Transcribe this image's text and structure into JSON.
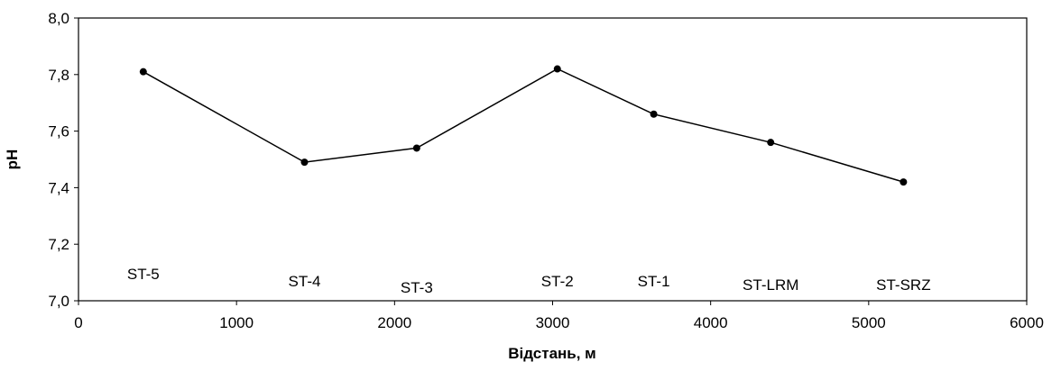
{
  "chart_data": {
    "type": "line",
    "title": "",
    "xlabel": "Відстань, м",
    "ylabel": "pH",
    "xlim": [
      0,
      6000
    ],
    "ylim": [
      7.0,
      8.0
    ],
    "x_ticks": [
      0,
      1000,
      2000,
      3000,
      4000,
      5000,
      6000
    ],
    "x_tick_labels": [
      "0",
      "1000",
      "2000",
      "3000",
      "4000",
      "5000",
      "6000"
    ],
    "y_ticks": [
      7.0,
      7.2,
      7.4,
      7.6,
      7.8,
      8.0
    ],
    "y_tick_labels": [
      "7,0",
      "7,2",
      "7,4",
      "7,6",
      "7,8",
      "8,0"
    ],
    "grid": false,
    "legend": "none",
    "line_color": "#000000",
    "points": [
      {
        "label": "ST-5",
        "x": 410,
        "y": 7.81
      },
      {
        "label": "ST-4",
        "x": 1430,
        "y": 7.49
      },
      {
        "label": "ST-3",
        "x": 2140,
        "y": 7.54
      },
      {
        "label": "ST-2",
        "x": 3030,
        "y": 7.82
      },
      {
        "label": "ST-1",
        "x": 3640,
        "y": 7.66
      },
      {
        "label": "ST-LRM",
        "x": 4380,
        "y": 7.56
      },
      {
        "label": "ST-SRZ",
        "x": 5220,
        "y": 7.42
      }
    ]
  }
}
